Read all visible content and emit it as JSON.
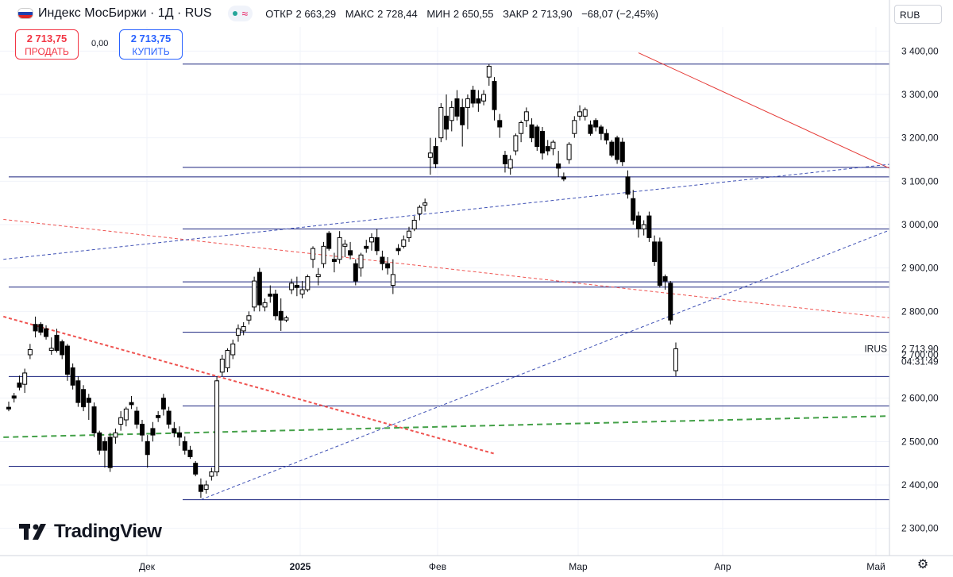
{
  "header": {
    "title": "Индекс МосБиржи · 1Д · RUS",
    "ohlc": [
      {
        "label": "ОТКР",
        "value": "2 663,29"
      },
      {
        "label": "МАКС",
        "value": "2 728,44"
      },
      {
        "label": "МИН",
        "value": "2 650,55"
      },
      {
        "label": "ЗАКР",
        "value": "2 713,90"
      },
      {
        "label": "",
        "value": "−68,07 (−2,45%)"
      }
    ],
    "currency": "RUB"
  },
  "trade": {
    "sell_price": "2 713,75",
    "sell_label": "ПРОДАТЬ",
    "spread": "0,00",
    "buy_price": "2 713,75",
    "buy_label": "КУПИТЬ"
  },
  "brand": "TradingView",
  "colors": {
    "up_body": "#ffffff",
    "down_body": "#000000",
    "wick": "#000000",
    "hline": "#1a237e",
    "red_trend": "#e53935",
    "red_dashed": "#ef5350",
    "blue_dashed": "#3f51b5",
    "green_dashed": "#43a047",
    "grid": "#f0f3fa"
  },
  "chart_data": {
    "type": "candlestick",
    "title": "Индекс МосБиржи",
    "series_symbol": "IRUS",
    "last_price": "2 713,90",
    "countdown": "04:31:49",
    "ylim": [
      2250,
      3450
    ],
    "y_ticks": [
      "3 400,00",
      "3 300,00",
      "3 200,00",
      "3 100,00",
      "3 000,00",
      "2 900,00",
      "2 800,00",
      "2 700,00",
      "2 600,00",
      "2 500,00",
      "2 400,00",
      "2 300,00"
    ],
    "x_ticks": [
      "Дек",
      "2025",
      "Фев",
      "Мар",
      "Апр",
      "Май"
    ],
    "ohlc": [
      [
        2579,
        2592,
        2570,
        2575
      ],
      [
        2605,
        2612,
        2590,
        2600
      ],
      [
        2635,
        2652,
        2618,
        2625
      ],
      [
        2632,
        2668,
        2612,
        2658
      ],
      [
        2700,
        2725,
        2690,
        2712
      ],
      [
        2770,
        2788,
        2740,
        2755
      ],
      [
        2770,
        2775,
        2745,
        2752
      ],
      [
        2760,
        2768,
        2735,
        2742
      ],
      [
        2710,
        2740,
        2700,
        2715
      ],
      [
        2745,
        2760,
        2705,
        2710
      ],
      [
        2730,
        2735,
        2690,
        2700
      ],
      [
        2720,
        2725,
        2640,
        2655
      ],
      [
        2670,
        2680,
        2620,
        2630
      ],
      [
        2640,
        2650,
        2580,
        2590
      ],
      [
        2620,
        2630,
        2570,
        2580
      ],
      [
        2600,
        2610,
        2550,
        2590
      ],
      [
        2580,
        2590,
        2510,
        2520
      ],
      [
        2520,
        2525,
        2470,
        2480
      ],
      [
        2500,
        2510,
        2440,
        2480
      ],
      [
        2510,
        2520,
        2430,
        2440
      ],
      [
        2510,
        2530,
        2495,
        2520
      ],
      [
        2540,
        2570,
        2525,
        2555
      ],
      [
        2550,
        2580,
        2535,
        2575
      ],
      [
        2590,
        2605,
        2575,
        2585
      ],
      [
        2570,
        2580,
        2530,
        2540
      ],
      [
        2540,
        2550,
        2500,
        2515
      ],
      [
        2500,
        2515,
        2440,
        2470
      ],
      [
        2530,
        2545,
        2500,
        2515
      ],
      [
        2560,
        2570,
        2545,
        2555
      ],
      [
        2600,
        2610,
        2560,
        2575
      ],
      [
        2570,
        2580,
        2530,
        2540
      ],
      [
        2530,
        2545,
        2510,
        2520
      ],
      [
        2520,
        2535,
        2490,
        2510
      ],
      [
        2500,
        2512,
        2470,
        2480
      ],
      [
        2480,
        2490,
        2460,
        2465
      ],
      [
        2450,
        2455,
        2420,
        2425
      ],
      [
        2400,
        2415,
        2370,
        2385
      ],
      [
        2390,
        2410,
        2380,
        2400
      ],
      [
        2420,
        2440,
        2410,
        2430
      ],
      [
        2430,
        2650,
        2420,
        2640
      ],
      [
        2660,
        2700,
        2650,
        2690
      ],
      [
        2670,
        2715,
        2660,
        2710
      ],
      [
        2700,
        2735,
        2690,
        2725
      ],
      [
        2745,
        2770,
        2730,
        2760
      ],
      [
        2755,
        2775,
        2745,
        2765
      ],
      [
        2780,
        2800,
        2770,
        2790
      ],
      [
        2810,
        2880,
        2800,
        2870
      ],
      [
        2890,
        2900,
        2800,
        2815
      ],
      [
        2810,
        2830,
        2800,
        2820
      ],
      [
        2840,
        2860,
        2820,
        2835
      ],
      [
        2840,
        2850,
        2780,
        2790
      ],
      [
        2800,
        2830,
        2755,
        2780
      ],
      [
        2780,
        2790,
        2775,
        2785
      ],
      [
        2850,
        2875,
        2840,
        2865
      ],
      [
        2860,
        2880,
        2835,
        2855
      ],
      [
        2840,
        2870,
        2830,
        2850
      ],
      [
        2850,
        2885,
        2845,
        2880
      ],
      [
        2920,
        2950,
        2900,
        2945
      ],
      [
        2880,
        2900,
        2860,
        2885
      ],
      [
        2910,
        2960,
        2900,
        2950
      ],
      [
        2980,
        2985,
        2940,
        2945
      ],
      [
        2920,
        2935,
        2890,
        2915
      ],
      [
        2920,
        2985,
        2910,
        2970
      ],
      [
        2950,
        2965,
        2925,
        2955
      ],
      [
        2940,
        2960,
        2920,
        2930
      ],
      [
        2910,
        2920,
        2860,
        2870
      ],
      [
        2900,
        2935,
        2880,
        2930
      ],
      [
        2950,
        2965,
        2935,
        2945
      ],
      [
        2960,
        2980,
        2940,
        2970
      ],
      [
        2970,
        2990,
        2930,
        2940
      ],
      [
        2925,
        2940,
        2895,
        2910
      ],
      [
        2910,
        2925,
        2885,
        2900
      ],
      [
        2860,
        2920,
        2840,
        2885
      ],
      [
        2945,
        2955,
        2930,
        2940
      ],
      [
        2950,
        2975,
        2945,
        2965
      ],
      [
        2970,
        2995,
        2960,
        2985
      ],
      [
        2990,
        3020,
        2985,
        3010
      ],
      [
        3025,
        3045,
        3010,
        3040
      ],
      [
        3045,
        3060,
        3030,
        3050
      ],
      [
        3155,
        3200,
        3115,
        3165
      ],
      [
        3180,
        3200,
        3130,
        3140
      ],
      [
        3200,
        3280,
        3190,
        3270
      ],
      [
        3250,
        3300,
        3195,
        3220
      ],
      [
        3240,
        3285,
        3215,
        3270
      ],
      [
        3290,
        3310,
        3240,
        3250
      ],
      [
        3270,
        3290,
        3180,
        3230
      ],
      [
        3270,
        3300,
        3220,
        3290
      ],
      [
        3310,
        3320,
        3270,
        3280
      ],
      [
        3290,
        3310,
        3260,
        3280
      ],
      [
        3285,
        3310,
        3275,
        3300
      ],
      [
        3340,
        3370,
        3320,
        3365
      ],
      [
        3330,
        3340,
        3240,
        3265
      ],
      [
        3240,
        3255,
        3200,
        3225
      ],
      [
        3160,
        3170,
        3120,
        3140
      ],
      [
        3130,
        3160,
        3115,
        3150
      ],
      [
        3170,
        3210,
        3160,
        3205
      ],
      [
        3210,
        3240,
        3190,
        3235
      ],
      [
        3240,
        3270,
        3225,
        3260
      ],
      [
        3230,
        3245,
        3190,
        3200
      ],
      [
        3225,
        3230,
        3170,
        3180
      ],
      [
        3215,
        3225,
        3150,
        3165
      ],
      [
        3180,
        3195,
        3160,
        3170
      ],
      [
        3175,
        3195,
        3160,
        3190
      ],
      [
        3140,
        3170,
        3110,
        3130
      ],
      [
        3110,
        3120,
        3100,
        3105
      ],
      [
        3150,
        3190,
        3140,
        3185
      ],
      [
        3210,
        3250,
        3200,
        3240
      ],
      [
        3250,
        3275,
        3240,
        3260
      ],
      [
        3250,
        3270,
        3240,
        3265
      ],
      [
        3230,
        3240,
        3205,
        3210
      ],
      [
        3240,
        3245,
        3215,
        3225
      ],
      [
        3225,
        3230,
        3195,
        3210
      ],
      [
        3210,
        3220,
        3185,
        3195
      ],
      [
        3190,
        3195,
        3155,
        3160
      ],
      [
        3200,
        3205,
        3140,
        3150
      ],
      [
        3190,
        3200,
        3135,
        3145
      ],
      [
        3110,
        3125,
        3060,
        3070
      ],
      [
        3060,
        3080,
        3000,
        3010
      ],
      [
        3020,
        3030,
        2970,
        2990
      ],
      [
        2990,
        3010,
        2975,
        3000
      ],
      [
        3020,
        3030,
        2960,
        2970
      ],
      [
        2960,
        2975,
        2905,
        2915
      ],
      [
        2960,
        2970,
        2855,
        2860
      ],
      [
        2880,
        2885,
        2850,
        2870
      ],
      [
        2865,
        2870,
        2770,
        2780
      ],
      [
        2663.29,
        2728.44,
        2650.55,
        2713.9
      ]
    ],
    "horizontal_levels": [
      3370,
      3132,
      3110,
      2990,
      2868,
      2856,
      2752,
      2650,
      2582,
      2443,
      2366
    ],
    "trend_lines": [
      {
        "style": "solid",
        "color": "red",
        "from": [
          118,
          3396
        ],
        "to": [
          168,
          3113
        ]
      },
      {
        "style": "dashed",
        "color": "red",
        "from": [
          -1,
          2788
        ],
        "to": [
          91,
          2472
        ]
      },
      {
        "style": "dashed",
        "color": "red",
        "from": [
          -1,
          3012
        ],
        "to": [
          171,
          2777
        ]
      },
      {
        "style": "dashed",
        "color": "blue",
        "from": [
          -1,
          2920
        ],
        "to": [
          203,
          3189
        ]
      },
      {
        "style": "dashed",
        "color": "blue",
        "from": [
          36,
          2366
        ],
        "to": [
          203,
          3170
        ]
      },
      {
        "style": "dashed",
        "color": "green",
        "from": [
          -1,
          2510
        ],
        "to": [
          203,
          2570
        ]
      }
    ],
    "grid": true,
    "legend": ""
  }
}
